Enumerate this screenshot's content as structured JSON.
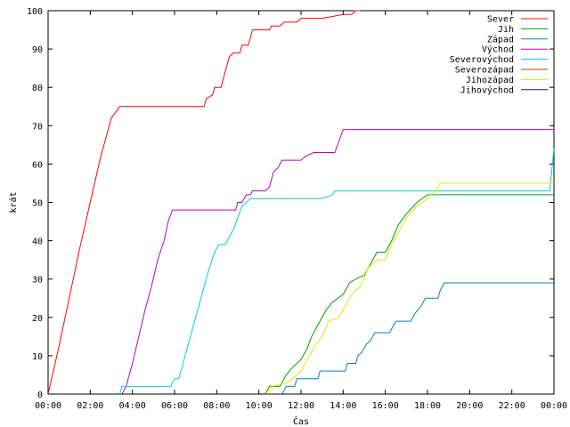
{
  "chart_data": {
    "type": "line",
    "title": "",
    "xlabel": "Čas",
    "ylabel": "krát",
    "xlim": [
      0,
      24
    ],
    "ylim": [
      0,
      100
    ],
    "x_ticks": [
      {
        "value": 0,
        "label": "00:00"
      },
      {
        "value": 2,
        "label": "02:00"
      },
      {
        "value": 4,
        "label": "04:00"
      },
      {
        "value": 6,
        "label": "06:00"
      },
      {
        "value": 8,
        "label": "08:00"
      },
      {
        "value": 10,
        "label": "10:00"
      },
      {
        "value": 12,
        "label": "12:00"
      },
      {
        "value": 14,
        "label": "14:00"
      },
      {
        "value": 16,
        "label": "16:00"
      },
      {
        "value": 18,
        "label": "18:00"
      },
      {
        "value": 20,
        "label": "20:00"
      },
      {
        "value": 22,
        "label": "22:00"
      },
      {
        "value": 24,
        "label": "00:00"
      }
    ],
    "y_ticks": [
      {
        "value": 0,
        "label": "0"
      },
      {
        "value": 10,
        "label": "10"
      },
      {
        "value": 20,
        "label": "20"
      },
      {
        "value": 30,
        "label": "30"
      },
      {
        "value": 40,
        "label": "40"
      },
      {
        "value": 50,
        "label": "50"
      },
      {
        "value": 60,
        "label": "60"
      },
      {
        "value": 70,
        "label": "70"
      },
      {
        "value": 80,
        "label": "80"
      },
      {
        "value": 90,
        "label": "90"
      },
      {
        "value": 100,
        "label": "100"
      }
    ],
    "grid": false,
    "legend_position": "top-right",
    "series": [
      {
        "name": "Sever",
        "color": "#ff0000",
        "points": [
          [
            0,
            0
          ],
          [
            0.5,
            12
          ],
          [
            1,
            25
          ],
          [
            1.5,
            38
          ],
          [
            2,
            50
          ],
          [
            2.5,
            62
          ],
          [
            3,
            72
          ],
          [
            3.4,
            75
          ],
          [
            4,
            75
          ],
          [
            5,
            75
          ],
          [
            6,
            75
          ],
          [
            7,
            75
          ],
          [
            7.4,
            75
          ],
          [
            7.5,
            77
          ],
          [
            7.8,
            78
          ],
          [
            7.9,
            80
          ],
          [
            8.2,
            80
          ],
          [
            8.4,
            84
          ],
          [
            8.6,
            88
          ],
          [
            8.8,
            89
          ],
          [
            9.1,
            89
          ],
          [
            9.2,
            91
          ],
          [
            9.5,
            91
          ],
          [
            9.6,
            93
          ],
          [
            9.7,
            95
          ],
          [
            10.5,
            95
          ],
          [
            10.6,
            96
          ],
          [
            11,
            96
          ],
          [
            11.2,
            97
          ],
          [
            11.8,
            97
          ],
          [
            12,
            98
          ],
          [
            13,
            98
          ],
          [
            14,
            99
          ],
          [
            14.4,
            99
          ],
          [
            14.6,
            100
          ],
          [
            14.8,
            100
          ]
        ]
      },
      {
        "name": "Jih",
        "color": "#00a000",
        "points": [
          [
            10.3,
            0
          ],
          [
            10.5,
            2
          ],
          [
            11,
            2
          ],
          [
            11.3,
            5
          ],
          [
            11.6,
            7
          ],
          [
            12,
            9
          ],
          [
            12.3,
            12
          ],
          [
            12.5,
            15
          ],
          [
            12.8,
            18
          ],
          [
            13.2,
            22
          ],
          [
            13.5,
            24
          ],
          [
            14,
            26
          ],
          [
            14.3,
            29
          ],
          [
            14.6,
            30
          ],
          [
            15,
            31
          ],
          [
            15.3,
            34
          ],
          [
            15.6,
            37
          ],
          [
            16,
            37
          ],
          [
            16.3,
            40
          ],
          [
            16.6,
            44
          ],
          [
            17,
            47
          ],
          [
            17.5,
            50
          ],
          [
            18,
            52
          ],
          [
            18.5,
            52
          ],
          [
            19,
            52
          ],
          [
            20,
            52
          ],
          [
            22,
            52
          ],
          [
            24,
            52
          ]
        ]
      },
      {
        "name": "Západ",
        "color": "#0080c0",
        "points": [
          [
            11.1,
            0
          ],
          [
            11.3,
            2
          ],
          [
            11.7,
            2
          ],
          [
            11.8,
            4
          ],
          [
            12.8,
            4
          ],
          [
            12.9,
            6
          ],
          [
            14.1,
            6
          ],
          [
            14.2,
            8
          ],
          [
            14.6,
            8
          ],
          [
            14.7,
            10
          ],
          [
            14.9,
            11
          ],
          [
            15.1,
            13
          ],
          [
            15.3,
            14
          ],
          [
            15.5,
            16
          ],
          [
            16.2,
            16
          ],
          [
            16.4,
            18
          ],
          [
            16.5,
            19
          ],
          [
            17.2,
            19
          ],
          [
            17.4,
            21
          ],
          [
            17.7,
            23
          ],
          [
            17.9,
            25
          ],
          [
            18.5,
            25
          ],
          [
            18.6,
            27
          ],
          [
            18.8,
            29
          ],
          [
            19.5,
            29
          ],
          [
            21,
            29
          ],
          [
            24,
            29
          ]
        ]
      },
      {
        "name": "Východ",
        "color": "#c000c0",
        "points": [
          [
            3.5,
            0
          ],
          [
            3.7,
            2
          ],
          [
            4,
            8
          ],
          [
            4.3,
            15
          ],
          [
            4.6,
            22
          ],
          [
            4.9,
            28
          ],
          [
            5.2,
            35
          ],
          [
            5.5,
            40
          ],
          [
            5.7,
            45
          ],
          [
            5.9,
            48
          ],
          [
            6.5,
            48
          ],
          [
            7,
            48
          ],
          [
            8,
            48
          ],
          [
            8.9,
            48
          ],
          [
            9,
            50
          ],
          [
            9.2,
            50
          ],
          [
            9.4,
            52
          ],
          [
            9.6,
            52
          ],
          [
            9.7,
            53
          ],
          [
            10.3,
            53
          ],
          [
            10.5,
            54
          ],
          [
            10.7,
            58
          ],
          [
            10.9,
            59
          ],
          [
            11.1,
            61
          ],
          [
            12,
            61
          ],
          [
            12.2,
            62
          ],
          [
            12.6,
            63
          ],
          [
            13.6,
            63
          ],
          [
            13.8,
            66
          ],
          [
            14,
            69
          ],
          [
            15,
            69
          ],
          [
            18,
            69
          ],
          [
            24,
            69
          ]
        ]
      },
      {
        "name": "Severovýchod",
        "color": "#00d0d0",
        "points": [
          [
            3.4,
            0
          ],
          [
            3.5,
            2
          ],
          [
            5.8,
            2
          ],
          [
            6,
            4
          ],
          [
            6.2,
            4
          ],
          [
            6.4,
            8
          ],
          [
            6.7,
            14
          ],
          [
            7,
            20
          ],
          [
            7.3,
            26
          ],
          [
            7.6,
            32
          ],
          [
            7.9,
            37
          ],
          [
            8.1,
            39
          ],
          [
            8.4,
            39
          ],
          [
            8.6,
            41
          ],
          [
            8.8,
            43
          ],
          [
            9,
            46
          ],
          [
            9.2,
            49
          ],
          [
            9.4,
            50
          ],
          [
            9.6,
            51
          ],
          [
            10,
            51
          ],
          [
            12,
            51
          ],
          [
            13,
            51
          ],
          [
            13.5,
            52
          ],
          [
            13.6,
            53
          ],
          [
            15,
            53
          ],
          [
            18,
            53
          ],
          [
            22,
            53
          ],
          [
            23.8,
            53
          ],
          [
            24,
            64
          ]
        ]
      },
      {
        "name": "Severozápad",
        "color": "#c04000",
        "points": [
          [
            14.5,
            100
          ],
          [
            14.8,
            100
          ]
        ]
      },
      {
        "name": "Jihozápad",
        "color": "#e8e800",
        "points": [
          [
            10.4,
            0
          ],
          [
            10.6,
            2
          ],
          [
            11.3,
            3
          ],
          [
            11.6,
            4
          ],
          [
            12,
            6
          ],
          [
            12.4,
            10
          ],
          [
            12.7,
            13
          ],
          [
            13,
            15
          ],
          [
            13.3,
            19
          ],
          [
            13.8,
            20
          ],
          [
            14.1,
            23
          ],
          [
            14.4,
            26
          ],
          [
            14.8,
            28
          ],
          [
            15.2,
            33
          ],
          [
            15.6,
            35
          ],
          [
            16,
            35
          ],
          [
            16.3,
            39
          ],
          [
            16.6,
            42
          ],
          [
            17,
            46
          ],
          [
            17.5,
            49
          ],
          [
            18,
            51
          ],
          [
            18.4,
            53
          ],
          [
            18.6,
            55
          ],
          [
            19,
            55
          ],
          [
            20,
            55
          ],
          [
            22,
            55
          ],
          [
            24,
            55
          ]
        ]
      },
      {
        "name": "Jihovýchod",
        "color": "#2000a0",
        "points": []
      }
    ]
  }
}
